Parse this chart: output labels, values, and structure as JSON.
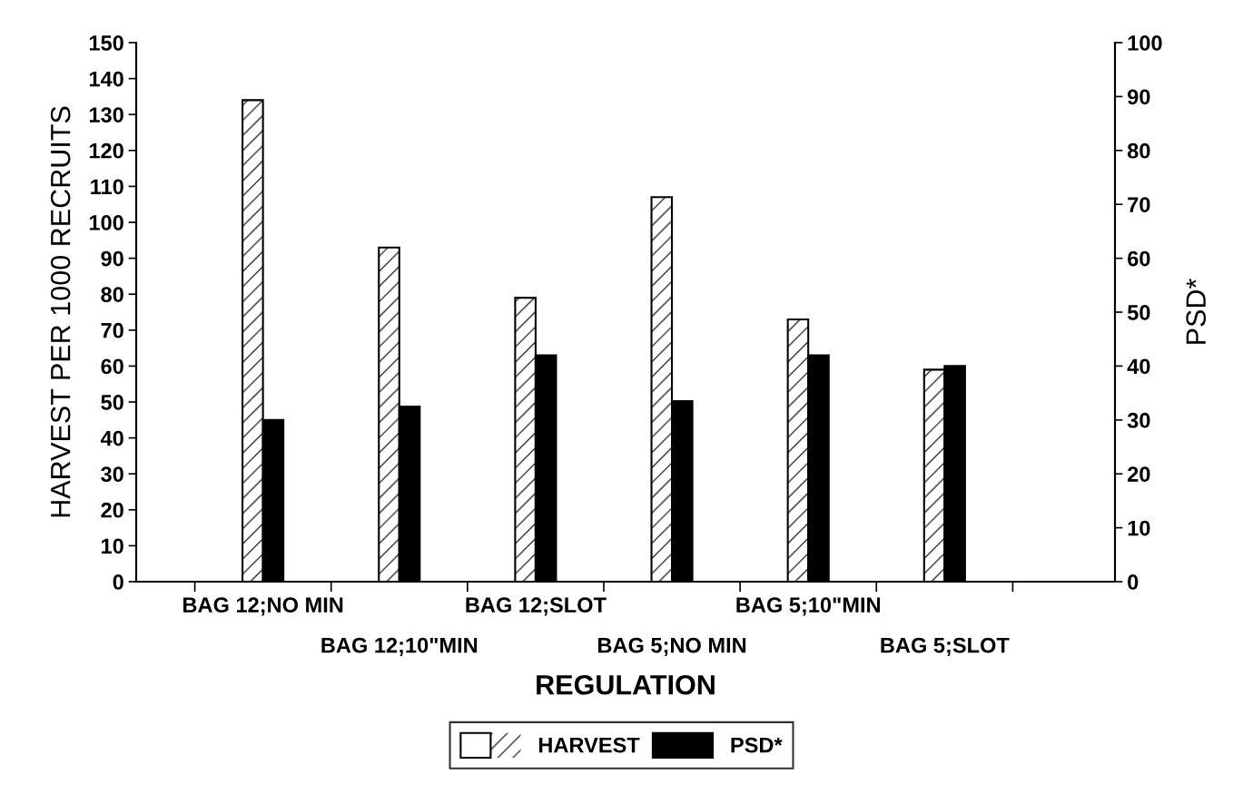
{
  "chart_data": {
    "type": "bar",
    "xlabel": "REGULATION",
    "ylabel": "HARVEST PER 1000 RECRUITS",
    "y2label": "PSD*",
    "categories": [
      "BAG 12;NO MIN",
      "BAG 12;10\"MIN",
      "BAG 12;SLOT",
      "BAG 5;NO MIN",
      "BAG 5;10\"MIN",
      "BAG 5;SLOT"
    ],
    "series": [
      {
        "name": "HARVEST",
        "color": "#ffffff",
        "values": [
          134,
          93,
          79,
          107,
          73,
          59
        ]
      },
      {
        "name": "PSD*",
        "color": "#000000",
        "axis": "y2",
        "values": [
          30,
          32.5,
          42,
          33.5,
          42,
          40
        ]
      }
    ],
    "ylim": [
      0,
      150
    ],
    "yticks": [
      0,
      10,
      20,
      30,
      40,
      50,
      60,
      70,
      80,
      90,
      100,
      110,
      120,
      130,
      140,
      150
    ],
    "y2lim": [
      0,
      100
    ],
    "y2ticks": [
      0,
      10,
      20,
      30,
      40,
      50,
      60,
      70,
      80,
      90,
      100
    ],
    "grid": false,
    "legend": "bottom"
  }
}
